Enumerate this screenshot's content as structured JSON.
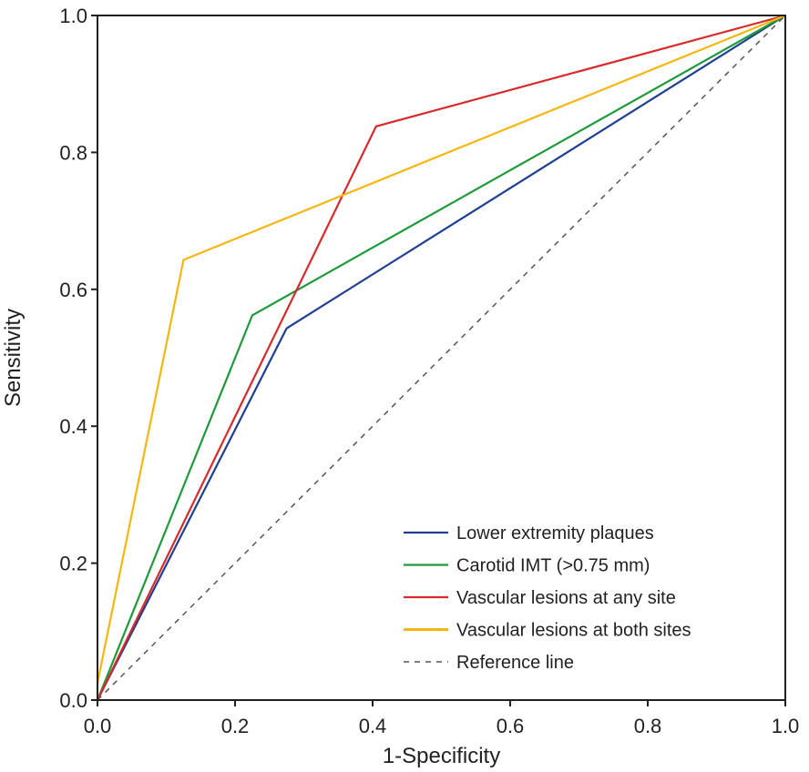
{
  "chart_data": {
    "type": "line",
    "title": "",
    "xlabel": "1-Specificity",
    "ylabel": "Sensitivity",
    "xlim": [
      0,
      1
    ],
    "ylim": [
      0,
      1
    ],
    "xticks": [
      "0.0",
      "0.2",
      "0.4",
      "0.6",
      "0.8",
      "1.0"
    ],
    "yticks": [
      "0.0",
      "0.2",
      "0.4",
      "0.6",
      "0.8",
      "1.0"
    ],
    "grid": false,
    "legend_position": "bottom-right",
    "series": [
      {
        "name": "Lower extremity plaques",
        "color": "#1f3f93",
        "dashed": false,
        "x": [
          0,
          0.275,
          1
        ],
        "y": [
          0,
          0.543,
          1
        ]
      },
      {
        "name": "Carotid IMT (>0.75 mm)",
        "color": "#1e9a3a",
        "dashed": false,
        "x": [
          0,
          0.225,
          1
        ],
        "y": [
          0,
          0.562,
          1
        ]
      },
      {
        "name": "Vascular lesions at any site",
        "color": "#d92a2a",
        "dashed": false,
        "x": [
          0,
          0.405,
          1
        ],
        "y": [
          0,
          0.838,
          1
        ]
      },
      {
        "name": "Vascular lesions at both sites",
        "color": "#f5b60f",
        "dashed": false,
        "x": [
          0,
          0,
          0.125,
          1
        ],
        "y": [
          0,
          0.025,
          0.643,
          1
        ]
      },
      {
        "name": "Reference line",
        "color": "#555555",
        "dashed": true,
        "x": [
          0,
          1
        ],
        "y": [
          0,
          1
        ]
      }
    ]
  }
}
